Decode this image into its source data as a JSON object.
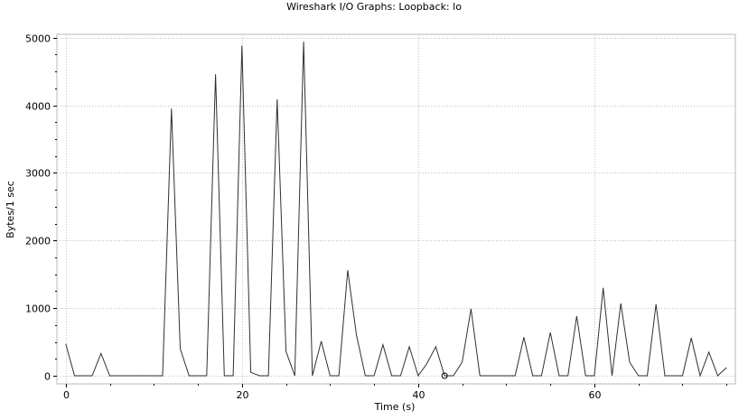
{
  "chart_data": {
    "type": "line",
    "title": "Wireshark I/O Graphs: Loopback: lo",
    "xlabel": "Time (s)",
    "ylabel": "Bytes/1 sec",
    "xlim": [
      -1,
      76
    ],
    "ylim": [
      -120,
      5050
    ],
    "xticks": [
      0,
      20,
      40,
      60
    ],
    "yticks": [
      0,
      1000,
      2000,
      3000,
      4000,
      5000
    ],
    "grid": true,
    "series": [
      {
        "color": "#303030",
        "x": [
          0,
          1,
          2,
          3,
          4,
          5,
          6,
          7,
          8,
          9,
          10,
          11,
          12,
          13,
          14,
          15,
          16,
          17,
          18,
          19,
          20,
          21,
          22,
          23,
          24,
          25,
          26,
          27,
          28,
          29,
          30,
          31,
          32,
          33,
          34,
          35,
          36,
          37,
          38,
          39,
          40,
          41,
          42,
          43,
          44,
          45,
          46,
          47,
          48,
          49,
          50,
          51,
          52,
          53,
          54,
          55,
          56,
          57,
          58,
          59,
          60,
          61,
          62,
          63,
          64,
          65,
          66,
          67,
          68,
          69,
          70,
          71,
          72,
          73,
          74,
          75
        ],
        "values": [
          470,
          0,
          0,
          0,
          330,
          0,
          0,
          0,
          0,
          0,
          0,
          0,
          3950,
          400,
          0,
          0,
          0,
          4460,
          0,
          0,
          4880,
          50,
          0,
          0,
          4090,
          360,
          0,
          4940,
          0,
          510,
          0,
          0,
          1560,
          600,
          0,
          0,
          460,
          0,
          0,
          430,
          0,
          180,
          430,
          0,
          0,
          200,
          990,
          0,
          0,
          0,
          0,
          0,
          570,
          0,
          0,
          640,
          0,
          0,
          880,
          0,
          0,
          1300,
          0,
          1070,
          200,
          0,
          0,
          1060,
          0,
          0,
          0,
          560,
          0,
          350,
          0,
          120
        ]
      }
    ],
    "marker": {
      "x": 43,
      "y": 0
    }
  }
}
